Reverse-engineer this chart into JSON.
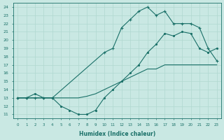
{
  "xlabel": "Humidex (Indice chaleur)",
  "xlim": [
    -0.5,
    23.5
  ],
  "ylim": [
    10.5,
    24.5
  ],
  "xticks": [
    0,
    1,
    2,
    3,
    4,
    5,
    6,
    7,
    8,
    9,
    10,
    11,
    12,
    13,
    14,
    15,
    16,
    17,
    18,
    19,
    20,
    21,
    22,
    23
  ],
  "yticks": [
    11,
    12,
    13,
    14,
    15,
    16,
    17,
    18,
    19,
    20,
    21,
    22,
    23,
    24
  ],
  "bg_color": "#c9e8e3",
  "line_color": "#1a7068",
  "grid_color": "#b0d8d0",
  "line1_x": [
    0,
    1,
    2,
    3,
    4,
    10,
    11,
    12,
    13,
    14,
    15,
    16,
    17,
    18,
    19,
    20,
    21,
    22,
    23
  ],
  "line1_y": [
    13,
    13,
    13,
    13,
    13,
    18.5,
    19.0,
    21.5,
    22.5,
    23.5,
    24.0,
    23.0,
    23.5,
    22.0,
    22.0,
    22.0,
    21.5,
    19.0,
    17.5
  ],
  "line2_x": [
    0,
    1,
    2,
    3,
    4,
    5,
    6,
    7,
    8,
    9,
    10,
    11,
    12,
    13,
    14,
    15,
    16,
    17,
    18,
    19,
    20,
    21,
    22,
    23
  ],
  "line2_y": [
    13,
    13,
    13,
    13,
    13,
    13,
    13,
    13,
    13.2,
    13.5,
    14.0,
    14.5,
    15.0,
    15.5,
    16.0,
    16.5,
    16.5,
    17.0,
    17.0,
    17.0,
    17.0,
    17.0,
    17.0,
    17.0
  ],
  "line3_x": [
    0,
    1,
    2,
    3,
    4,
    5,
    6,
    7,
    8,
    9,
    10,
    11,
    12,
    13,
    14,
    15,
    16,
    17,
    18,
    19,
    20,
    21,
    22,
    23
  ],
  "line3_y": [
    13,
    13,
    13.5,
    13,
    13,
    12,
    11.5,
    11,
    11,
    11.5,
    13,
    14,
    15,
    16,
    17,
    18.5,
    19.5,
    20.8,
    20.5,
    21.0,
    20.8,
    19.0,
    18.5,
    19.0
  ]
}
